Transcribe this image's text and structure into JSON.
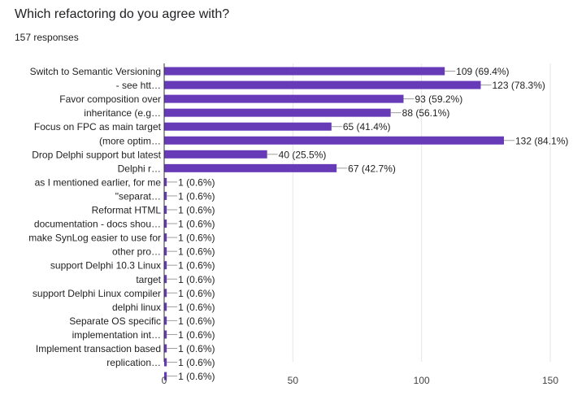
{
  "title": "Which refactoring do you agree with?",
  "responses": "157 responses",
  "chart_data": {
    "type": "bar",
    "orientation": "horizontal",
    "bar_color": "#673ab7",
    "grid": true,
    "xlim": [
      0,
      150
    ],
    "xticks": [
      "0",
      "50",
      "100",
      "150"
    ],
    "xtick_values": [
      0,
      50,
      100,
      150
    ],
    "category_labels": [
      [
        "Switch to Semantic Versioning",
        "- see htt…"
      ],
      [
        "Favor composition over",
        "inheritance (e.g…"
      ],
      [
        "Focus on FPC as main target",
        "(more optim…"
      ],
      [
        "Drop Delphi support but latest",
        "Delphi r…"
      ],
      [
        "as I mentioned earlier, for me",
        "\"separat…"
      ],
      [
        "Reformat HTML",
        "documentation - docs shou…"
      ],
      [
        "make SynLog easier to use for",
        "other pro…"
      ],
      [
        "support Delphi 10.3 Linux",
        "target"
      ],
      [
        "support Delphi Linux compiler",
        "delphi linux"
      ],
      [
        "Separate OS specific",
        "implementation int…"
      ],
      [
        "Implement transaction based",
        "replication…"
      ]
    ],
    "values": [
      109,
      123,
      93,
      88,
      65,
      132,
      40,
      67,
      1,
      1,
      1,
      1,
      1,
      1,
      1,
      1,
      1,
      1,
      1,
      1,
      1,
      1,
      1
    ],
    "data_labels": [
      "109 (69.4%)",
      "123 (78.3%)",
      "93 (59.2%)",
      "88 (56.1%)",
      "65 (41.4%)",
      "132 (84.1%)",
      "40 (25.5%)",
      "67 (42.7%)",
      "1 (0.6%)",
      "1 (0.6%)",
      "1 (0.6%)",
      "1 (0.6%)",
      "1 (0.6%)",
      "1 (0.6%)",
      "1 (0.6%)",
      "1 (0.6%)",
      "1 (0.6%)",
      "1 (0.6%)",
      "1 (0.6%)",
      "1 (0.6%)",
      "1 (0.6%)",
      "1 (0.6%)",
      "1 (0.6%)"
    ]
  }
}
